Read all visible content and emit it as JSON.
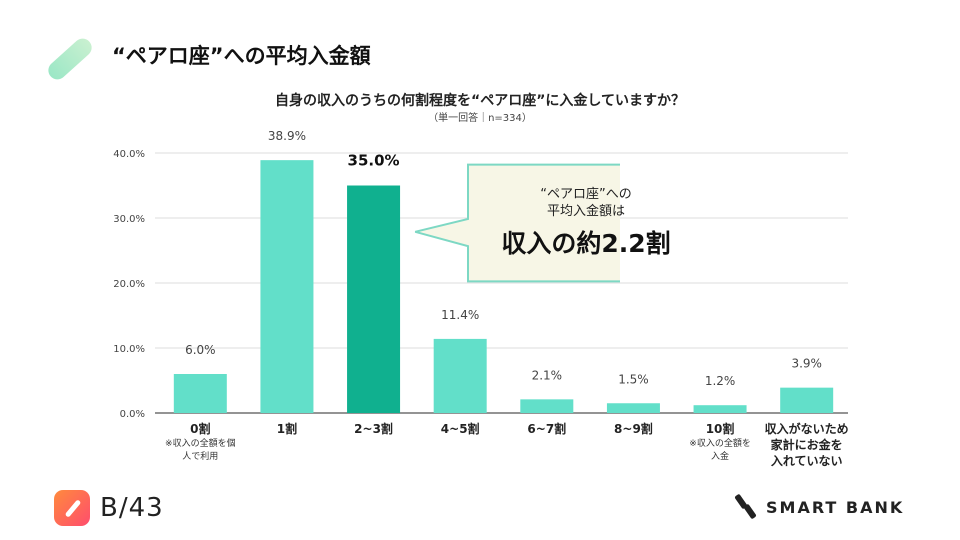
{
  "header": {
    "title": "“ペアロ座”への平均入金額"
  },
  "chart_data": {
    "type": "bar",
    "title": "自身の収入のうちの何割程度を“ペアロ座”に入金していますか？",
    "subtitle": "（単一回答｜n=334）",
    "ylim": [
      0,
      40
    ],
    "yticks": [
      {
        "value": 0,
        "label": "0.0%"
      },
      {
        "value": 10,
        "label": "10.0%"
      },
      {
        "value": 20,
        "label": "20.0%"
      },
      {
        "value": 30,
        "label": "30.0%"
      },
      {
        "value": 40,
        "label": "40.0%"
      }
    ],
    "categories": [
      {
        "label": "0割",
        "note": [
          "※収入の全額を個",
          "人で利用"
        ]
      },
      {
        "label": "1割",
        "note": []
      },
      {
        "label": "2~3割",
        "note": []
      },
      {
        "label": "4~5割",
        "note": []
      },
      {
        "label": "6~7割",
        "note": []
      },
      {
        "label": "8~9割",
        "note": []
      },
      {
        "label": "10割",
        "note": [
          "※収入の全額を",
          "入金"
        ]
      },
      {
        "label": "収入がないため",
        "label2": "家計にお金を",
        "label3": "入れていない",
        "note": []
      }
    ],
    "values": [
      6.0,
      38.9,
      35.0,
      11.4,
      2.1,
      1.5,
      1.2,
      3.9
    ],
    "value_labels": [
      "6.0%",
      "38.9%",
      "35.0%",
      "11.4%",
      "2.1%",
      "1.5%",
      "1.2%",
      "3.9%"
    ],
    "highlight_index": 2,
    "colors": {
      "bar": "#62dfc9",
      "highlight": "#10b08f",
      "grid": "#dddddd",
      "axis": "#555555"
    }
  },
  "callout": {
    "line1": "“ペアロ座”への",
    "line2": "平均入金額は",
    "big": "収入の約2.2割",
    "border_color": "#7dd8c4",
    "fill_color": "#f7f6e6"
  },
  "footer": {
    "b43_logo_text": "B/43",
    "smartbank_logo_text": "SMART BANK"
  }
}
